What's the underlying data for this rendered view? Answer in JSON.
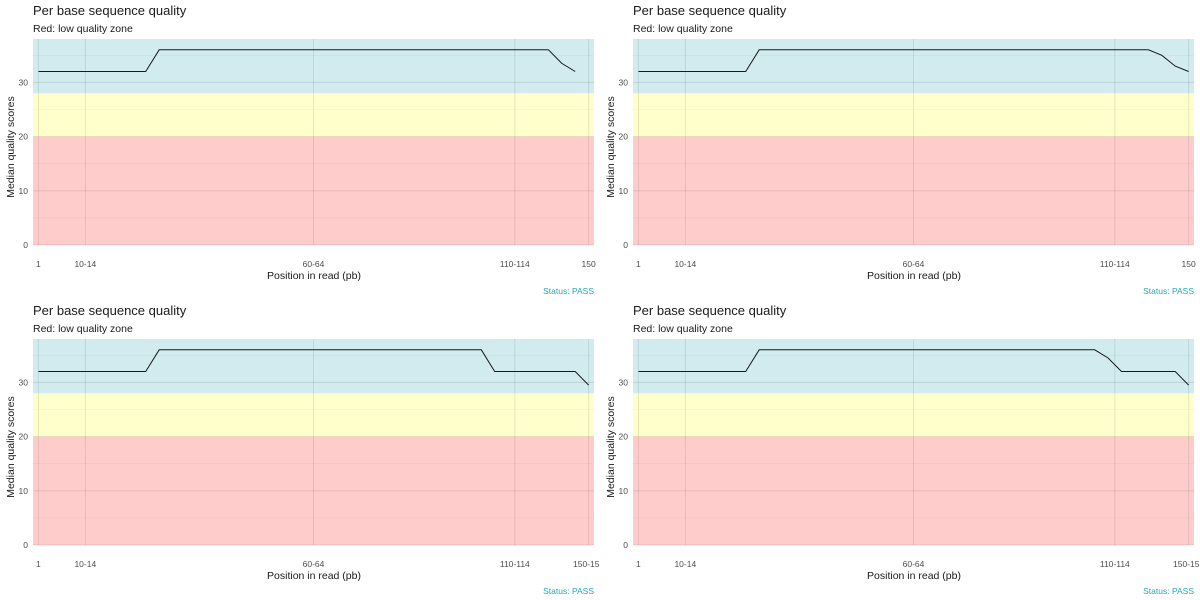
{
  "chart_data": [
    {
      "type": "line",
      "title": "Per base sequence quality",
      "subtitle": "Red: low quality zone",
      "xlabel": "Position in read (pb)",
      "ylabel": "Median quality scores",
      "caption": "Status: PASS",
      "x_tick_labels": [
        "1",
        "10-14",
        "60-64",
        "110-114",
        "150"
      ],
      "y_ticks": [
        0,
        10,
        20,
        30
      ],
      "ylim": [
        0,
        38
      ],
      "grid": true,
      "zones": [
        {
          "name": "red",
          "from": 0,
          "to": 20,
          "color": "#ffcccc"
        },
        {
          "name": "yellow",
          "from": 20,
          "to": 28,
          "color": "#ffffcc"
        },
        {
          "name": "green",
          "from": 28,
          "to": 38,
          "color": "#d1ebef"
        }
      ],
      "line_color": "#1a1a1a",
      "caption_color": "#26a6b8",
      "series": [
        {
          "x": [
            1,
            9,
            10,
            39,
            40,
            41
          ],
          "y": [
            32,
            32,
            36,
            36,
            33.5,
            32
          ]
        }
      ]
    },
    {
      "type": "line",
      "title": "Per base sequence quality",
      "subtitle": "Red: low quality zone",
      "xlabel": "Position in read (pb)",
      "ylabel": "Median quality scores",
      "caption": "Status: PASS",
      "x_tick_labels": [
        "1",
        "10-14",
        "60-64",
        "110-114",
        "150"
      ],
      "y_ticks": [
        0,
        10,
        20,
        30
      ],
      "ylim": [
        0,
        38
      ],
      "grid": true,
      "zones": [
        {
          "name": "red",
          "from": 0,
          "to": 20,
          "color": "#ffcccc"
        },
        {
          "name": "yellow",
          "from": 20,
          "to": 28,
          "color": "#ffffcc"
        },
        {
          "name": "green",
          "from": 28,
          "to": 38,
          "color": "#d1ebef"
        }
      ],
      "line_color": "#1a1a1a",
      "caption_color": "#26a6b8",
      "series": [
        {
          "x": [
            1,
            9,
            10,
            39,
            40,
            41,
            42
          ],
          "y": [
            32,
            32,
            36,
            36,
            35,
            33,
            32
          ]
        }
      ]
    },
    {
      "type": "line",
      "title": "Per base sequence quality",
      "subtitle": "Red: low quality zone",
      "xlabel": "Position in read (pb)",
      "ylabel": "Median quality scores",
      "caption": "Status: PASS",
      "x_tick_labels": [
        "1",
        "10-14",
        "60-64",
        "110-114",
        "150-151"
      ],
      "y_ticks": [
        0,
        10,
        20,
        30
      ],
      "ylim": [
        0,
        38
      ],
      "grid": true,
      "zones": [
        {
          "name": "red",
          "from": 0,
          "to": 20,
          "color": "#ffcccc"
        },
        {
          "name": "yellow",
          "from": 20,
          "to": 28,
          "color": "#ffffcc"
        },
        {
          "name": "green",
          "from": 28,
          "to": 38,
          "color": "#d1ebef"
        }
      ],
      "line_color": "#1a1a1a",
      "caption_color": "#26a6b8",
      "series": [
        {
          "x": [
            1,
            9,
            10,
            34,
            35,
            38,
            39,
            41,
            42
          ],
          "y": [
            32,
            32,
            36,
            36,
            32,
            32,
            32,
            32,
            29.5
          ]
        }
      ]
    },
    {
      "type": "line",
      "title": "Per base sequence quality",
      "subtitle": "Red: low quality zone",
      "xlabel": "Position in read (pb)",
      "ylabel": "Median quality scores",
      "caption": "Status: PASS",
      "x_tick_labels": [
        "1",
        "10-14",
        "60-64",
        "110-114",
        "150-151"
      ],
      "y_ticks": [
        0,
        10,
        20,
        30
      ],
      "ylim": [
        0,
        38
      ],
      "grid": true,
      "zones": [
        {
          "name": "red",
          "from": 0,
          "to": 20,
          "color": "#ffcccc"
        },
        {
          "name": "yellow",
          "from": 20,
          "to": 28,
          "color": "#ffffcc"
        },
        {
          "name": "green",
          "from": 28,
          "to": 38,
          "color": "#d1ebef"
        }
      ],
      "line_color": "#1a1a1a",
      "caption_color": "#26a6b8",
      "series": [
        {
          "x": [
            1,
            9,
            10,
            35,
            36,
            37,
            41,
            42
          ],
          "y": [
            32,
            32,
            36,
            36,
            34.5,
            32,
            32,
            29.5
          ]
        }
      ]
    }
  ]
}
